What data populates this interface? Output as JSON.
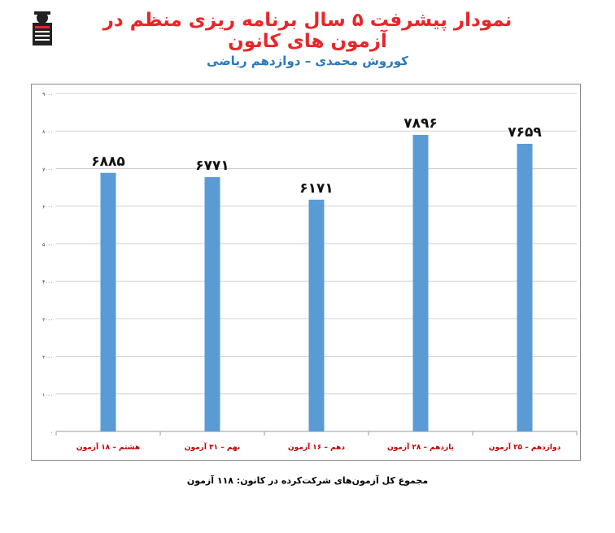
{
  "header": {
    "title": "نمودار پیشرفت ۵ سال برنامه ریزی منظم در آزمون های کانون",
    "subtitle": "کوروش محمدی – دوازدهم ریاضی"
  },
  "footer": {
    "text": "مجموع کل آزمون‌های شرکت‌کرده در کانون:  ۱۱۸ آزمون"
  },
  "colors": {
    "title": "#e8262a",
    "subtitle": "#2b78be",
    "bar": "#5b9bd5",
    "category_label": "#c00000"
  },
  "chart_data": {
    "type": "bar",
    "categories": [
      "هشتم – ۱۸ آزمون",
      "نهم – ۳۱ آزمون",
      "دهم – ۱۶ آزمون",
      "یازدهم – ۲۸ آزمون",
      "دوازدهم – ۲۵ آزمون"
    ],
    "values": [
      6885,
      6771,
      6171,
      7896,
      7659
    ],
    "value_labels": [
      "۶۸۸۵",
      "۶۷۷۱",
      "۶۱۷۱",
      "۷۸۹۶",
      "۷۶۵۹"
    ],
    "ylim": [
      0,
      9000
    ],
    "yticks": [
      0,
      1000,
      2000,
      3000,
      4000,
      5000,
      6000,
      7000,
      8000,
      9000
    ],
    "ytick_labels": [
      "۰",
      "۱۰۰۰",
      "۲۰۰۰",
      "۳۰۰۰",
      "۴۰۰۰",
      "۵۰۰۰",
      "۶۰۰۰",
      "۷۰۰۰",
      "۸۰۰۰",
      "۹۰۰۰"
    ],
    "grid": true,
    "legend": false,
    "xlabel": "",
    "ylabel": ""
  }
}
